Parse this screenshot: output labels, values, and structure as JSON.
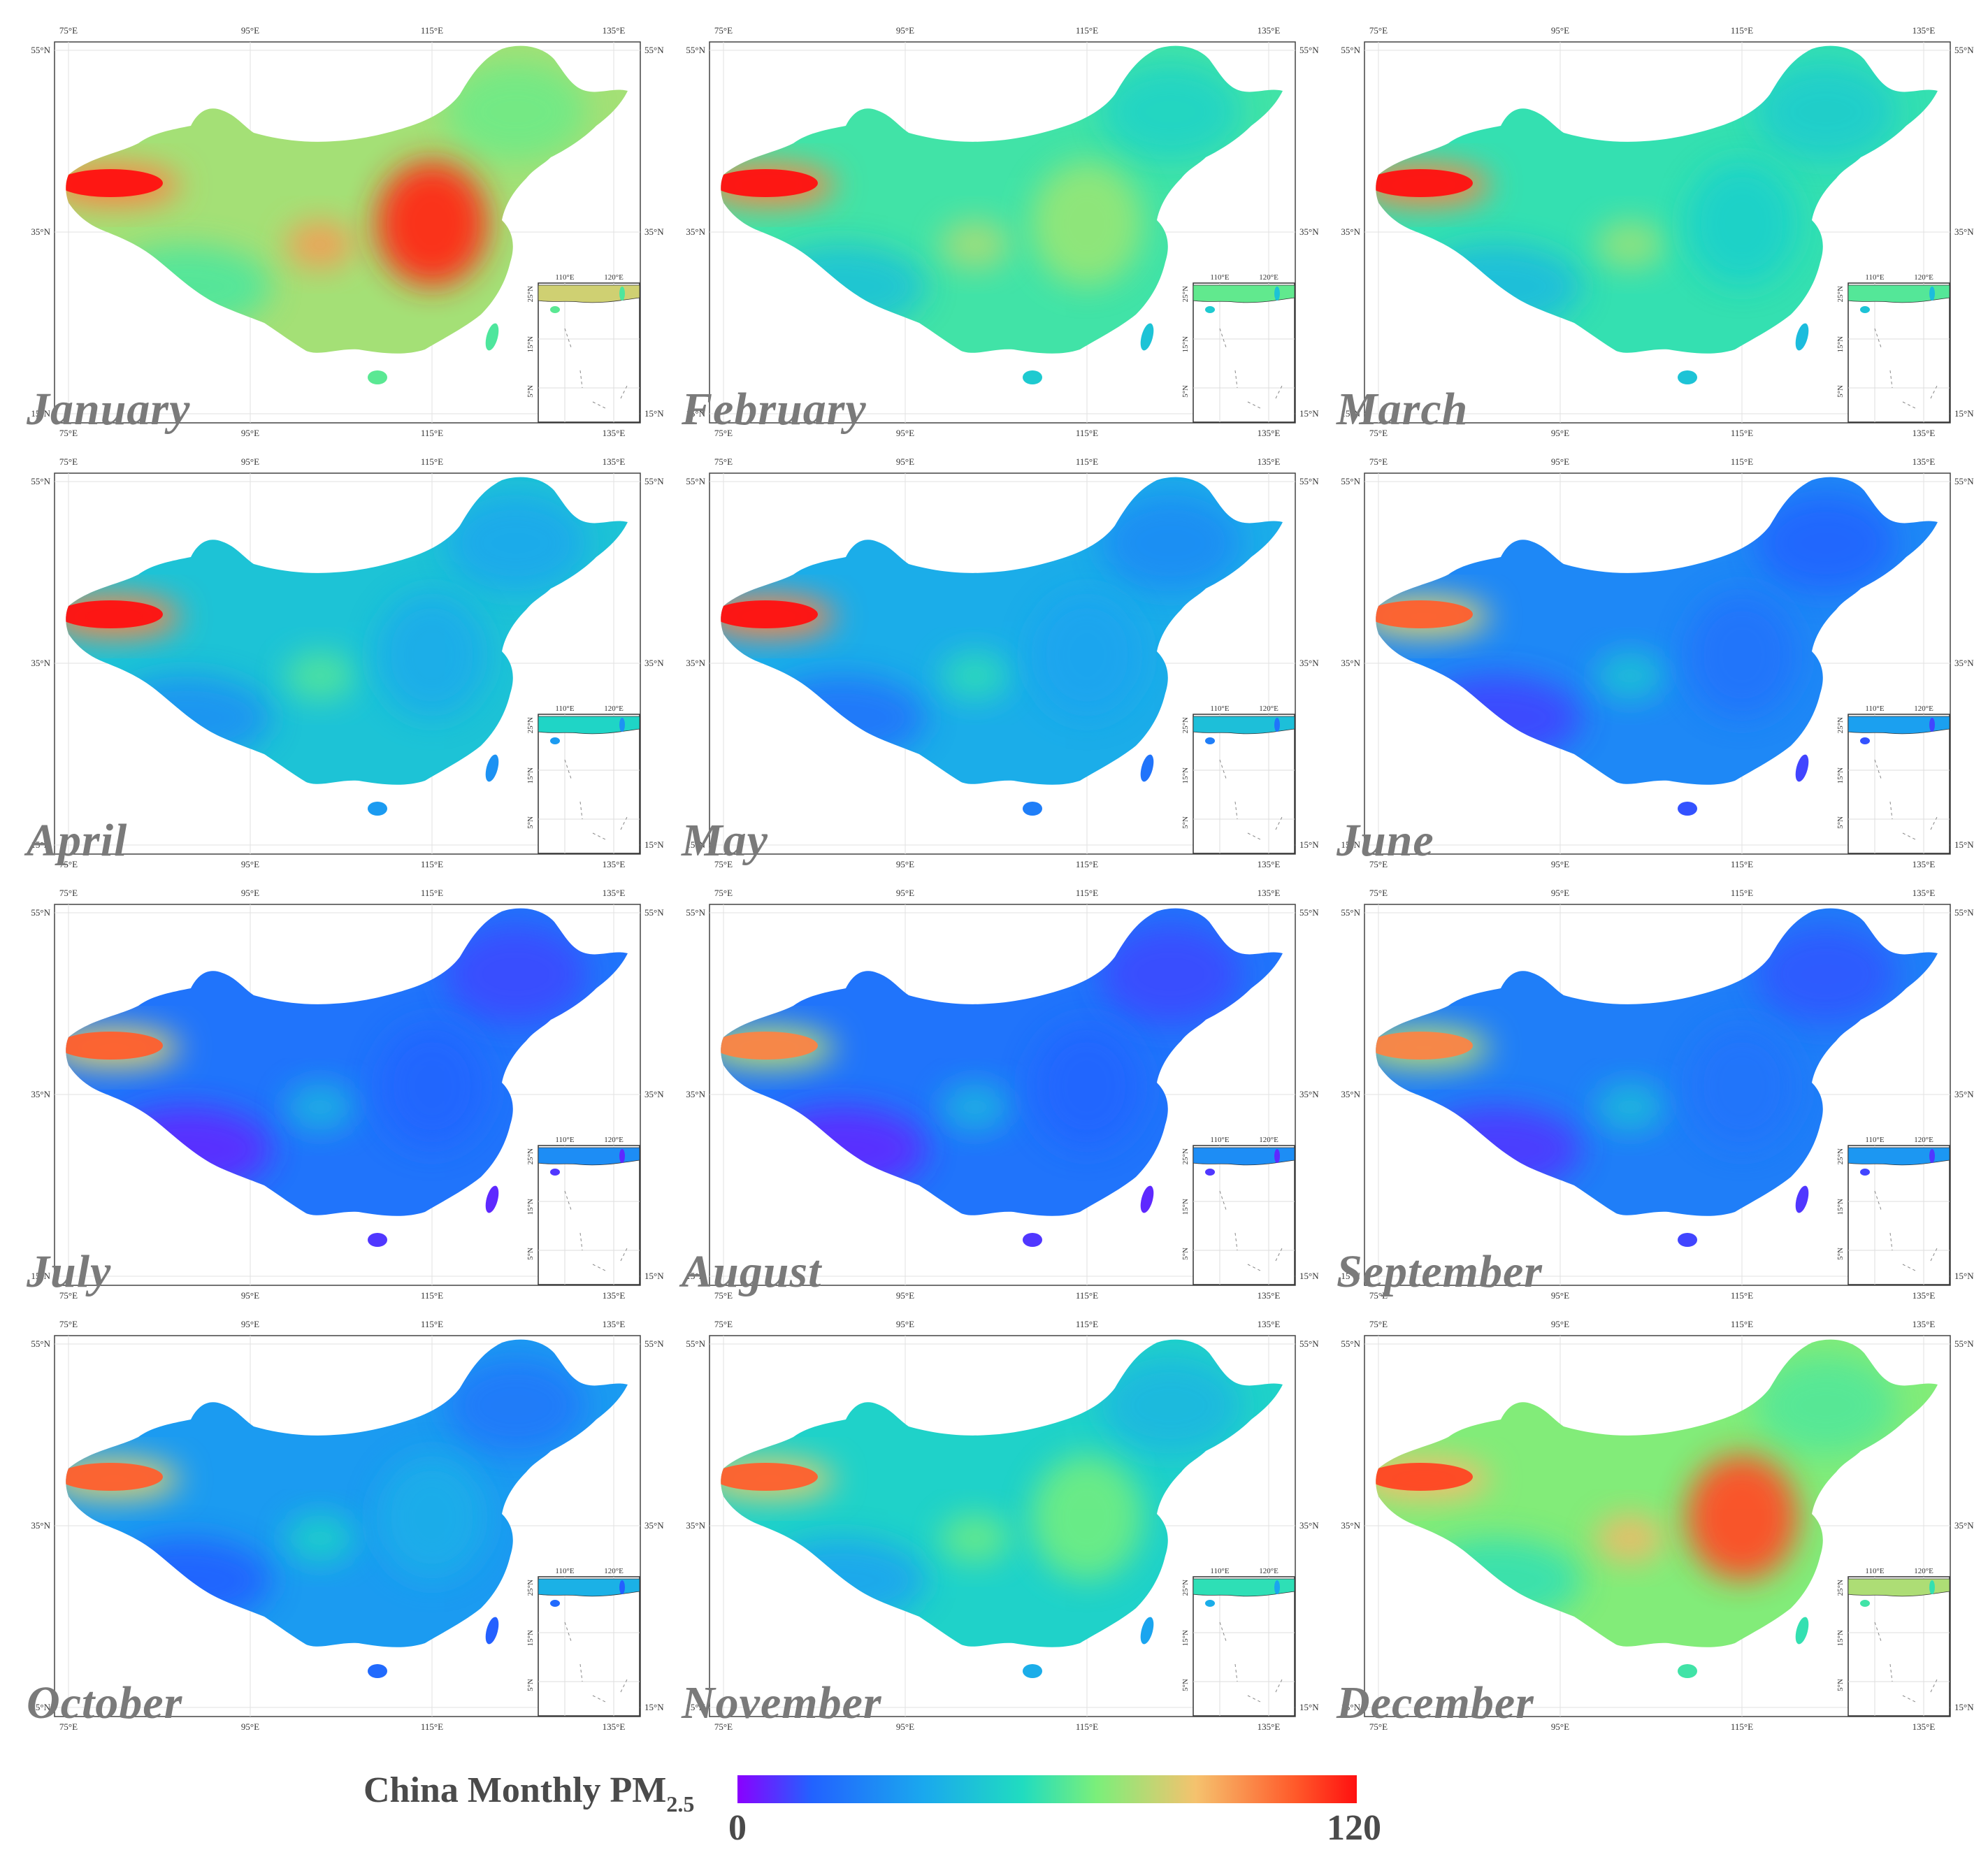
{
  "figure": {
    "months": [
      "January",
      "February",
      "March",
      "April",
      "May",
      "June",
      "July",
      "August",
      "September",
      "October",
      "November",
      "December"
    ],
    "axes": {
      "longitude_ticks": [
        "75°E",
        "95°E",
        "115°E",
        "135°E"
      ],
      "latitude_ticks": [
        "55°N",
        "35°N",
        "15°N"
      ],
      "inset_longitude_ticks": [
        "110°E",
        "120°E"
      ],
      "inset_latitude_ticks": [
        "25°N",
        "15°N",
        "5°N"
      ]
    },
    "panel_intensity": [
      0.62,
      0.48,
      0.46,
      0.36,
      0.3,
      0.22,
      0.18,
      0.18,
      0.2,
      0.26,
      0.4,
      0.58
    ],
    "hotspot_north_china_plain": [
      0.95,
      0.6,
      0.4,
      0.3,
      0.28,
      0.18,
      0.15,
      0.15,
      0.18,
      0.3,
      0.55,
      0.88
    ],
    "hotspot_taklimakan": [
      1.0,
      1.0,
      1.0,
      1.0,
      1.0,
      0.85,
      0.85,
      0.8,
      0.8,
      0.85,
      0.85,
      0.9
    ]
  },
  "legend": {
    "title": "China Monthly PM",
    "subscript": "2.5",
    "min_label": "0",
    "max_label": "120",
    "colormap": [
      "#8a00ff",
      "#2262ff",
      "#1aa8ee",
      "#20dcc0",
      "#7bef7a",
      "#f5c26e",
      "#ff5a2a",
      "#ff1010"
    ]
  }
}
